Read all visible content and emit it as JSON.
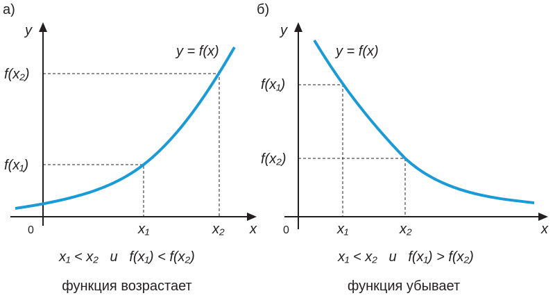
{
  "panels": [
    {
      "label": "а)",
      "y_axis": "y",
      "x_axis": "x",
      "origin": "0",
      "curve_label": "y = f(x)",
      "y_marks": [
        "f(x₂)",
        "f(x₁)"
      ],
      "x_marks": [
        "x₁",
        "x₂"
      ],
      "condition": "x₁ < x₂   и   f(x₁) < f(x₂)",
      "caption": "функция возрастает"
    },
    {
      "label": "б)",
      "y_axis": "y",
      "x_axis": "x",
      "origin": "0",
      "curve_label": "y = f(x)",
      "y_marks": [
        "f(x₁)",
        "f(x₂)"
      ],
      "x_marks": [
        "x₁",
        "x₂"
      ],
      "condition": "x₁ < x₂   и   f(x₁) > f(x₂)",
      "caption": "функция убывает"
    }
  ]
}
